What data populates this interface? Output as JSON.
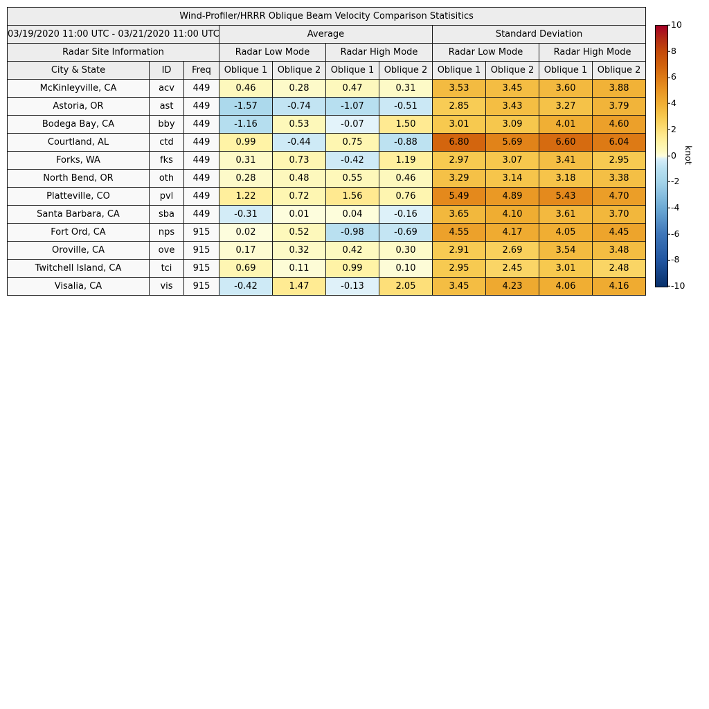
{
  "title": "Wind-Profiler/HRRR Oblique Beam Velocity Comparison Statisitics",
  "header": {
    "date_range": "03/19/2020 11:00 UTC - 03/21/2020 11:00 UTC",
    "groups": [
      "Average",
      "Standard Deviation"
    ],
    "site_info": "Radar Site Information",
    "mode_labels": [
      "Radar Low Mode",
      "Radar High Mode",
      "Radar Low Mode",
      "Radar High Mode"
    ],
    "col_labels": [
      "City & State",
      "ID",
      "Freq",
      "Oblique 1",
      "Oblique 2",
      "Oblique 1",
      "Oblique 2",
      "Oblique 1",
      "Oblique 2",
      "Oblique 1",
      "Oblique 2"
    ]
  },
  "colorbar": {
    "label": "knot",
    "vmin": -10,
    "vmax": 10,
    "ticks": [
      "10",
      "8",
      "6",
      "4",
      "2",
      "0",
      "-2",
      "-4",
      "-6",
      "-8",
      "-10"
    ]
  },
  "chart_data": {
    "type": "heatmap",
    "title": "Wind-Profiler/HRRR Oblique Beam Velocity Comparison Statisitics",
    "subtitle": "03/19/2020 11:00 UTC - 03/21/2020 11:00 UTC",
    "unit": "knot",
    "value_range": [
      -10,
      10
    ],
    "column_structure": {
      "groups": [
        "Average",
        "Standard Deviation"
      ],
      "modes_per_group": [
        "Radar Low Mode",
        "Radar High Mode"
      ],
      "beams_per_mode": [
        "Oblique 1",
        "Oblique 2"
      ]
    },
    "rows": [
      {
        "city": "McKinleyville, CA",
        "id": "acv",
        "freq": "449",
        "values": [
          0.46,
          0.28,
          0.47,
          0.31,
          3.53,
          3.45,
          3.6,
          3.88
        ]
      },
      {
        "city": "Astoria, OR",
        "id": "ast",
        "freq": "449",
        "values": [
          -1.57,
          -0.74,
          -1.07,
          -0.51,
          2.85,
          3.43,
          3.27,
          3.79
        ]
      },
      {
        "city": "Bodega Bay, CA",
        "id": "bby",
        "freq": "449",
        "values": [
          -1.16,
          0.53,
          -0.07,
          1.5,
          3.01,
          3.09,
          4.01,
          4.6
        ]
      },
      {
        "city": "Courtland, AL",
        "id": "ctd",
        "freq": "449",
        "values": [
          0.99,
          -0.44,
          0.75,
          -0.88,
          6.8,
          5.69,
          6.6,
          6.04
        ]
      },
      {
        "city": "Forks, WA",
        "id": "fks",
        "freq": "449",
        "values": [
          0.31,
          0.73,
          -0.42,
          1.19,
          2.97,
          3.07,
          3.41,
          2.95
        ]
      },
      {
        "city": "North Bend, OR",
        "id": "oth",
        "freq": "449",
        "values": [
          0.28,
          0.48,
          0.55,
          0.46,
          3.29,
          3.14,
          3.18,
          3.38
        ]
      },
      {
        "city": "Platteville, CO",
        "id": "pvl",
        "freq": "449",
        "values": [
          1.22,
          0.72,
          1.56,
          0.76,
          5.49,
          4.89,
          5.43,
          4.7
        ]
      },
      {
        "city": "Santa Barbara, CA",
        "id": "sba",
        "freq": "449",
        "values": [
          -0.31,
          0.01,
          0.04,
          -0.16,
          3.65,
          4.1,
          3.61,
          3.7
        ]
      },
      {
        "city": "Fort Ord, CA",
        "id": "nps",
        "freq": "915",
        "values": [
          0.02,
          0.52,
          -0.98,
          -0.69,
          4.55,
          4.17,
          4.05,
          4.45
        ]
      },
      {
        "city": "Oroville, CA",
        "id": "ove",
        "freq": "915",
        "values": [
          0.17,
          0.32,
          0.42,
          0.3,
          2.91,
          2.69,
          3.54,
          3.48
        ]
      },
      {
        "city": "Twitchell Island, CA",
        "id": "tci",
        "freq": "915",
        "values": [
          0.69,
          0.11,
          0.99,
          0.1,
          2.95,
          2.45,
          3.01,
          2.48
        ]
      },
      {
        "city": "Visalia, CA",
        "id": "vis",
        "freq": "915",
        "values": [
          -0.42,
          1.47,
          -0.13,
          2.05,
          3.45,
          4.23,
          4.06,
          4.16
        ]
      }
    ],
    "colormap_anchors": [
      [
        -10,
        "#08306b"
      ],
      [
        -8,
        "#2155a0"
      ],
      [
        -6,
        "#3e76b9"
      ],
      [
        -4,
        "#6ca9d4"
      ],
      [
        -2,
        "#a3d3e9"
      ],
      [
        -1,
        "#b8e0f0"
      ],
      [
        -0.3,
        "#d3ecf7"
      ],
      [
        -0.02,
        "#e7f5fb"
      ],
      [
        0,
        "#fdfdde"
      ],
      [
        0.4,
        "#fdf9c0"
      ],
      [
        1,
        "#fff3a6"
      ],
      [
        1.7,
        "#ffe78a"
      ],
      [
        2.2,
        "#fcdb71"
      ],
      [
        3,
        "#f7c94f"
      ],
      [
        4,
        "#f0af34"
      ],
      [
        5,
        "#e99623"
      ],
      [
        6,
        "#de7b15"
      ],
      [
        7,
        "#d0600c"
      ],
      [
        8,
        "#c44a0a"
      ],
      [
        9,
        "#b32b15"
      ],
      [
        10,
        "#a50026"
      ]
    ]
  }
}
